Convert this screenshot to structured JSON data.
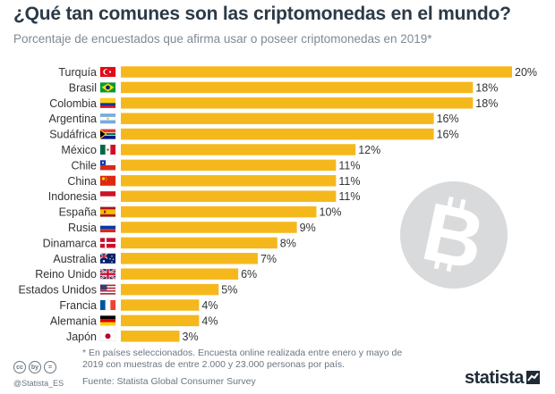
{
  "chart_data": {
    "type": "bar",
    "orientation": "horizontal",
    "title": "¿Qué tan comunes son las criptomonedas en el mundo?",
    "subtitle": "Porcentaje de encuestados que afirma usar o poseer criptomonedas en 2019*",
    "categories": [
      "Turquía",
      "Brasil",
      "Colombia",
      "Argentina",
      "Sudáfrica",
      "México",
      "Chile",
      "China",
      "Indonesia",
      "España",
      "Rusia",
      "Dinamarca",
      "Australia",
      "Reino Unido",
      "Estados Unidos",
      "Francia",
      "Alemania",
      "Japón"
    ],
    "values": [
      20,
      18,
      18,
      16,
      16,
      12,
      11,
      11,
      11,
      10,
      9,
      8,
      7,
      6,
      5,
      4,
      4,
      3
    ],
    "value_suffix": "%",
    "xlim": [
      0,
      20
    ],
    "bar_color": "#f5b81c"
  },
  "flags": [
    "turkey-flag-icon",
    "brazil-flag-icon",
    "colombia-flag-icon",
    "argentina-flag-icon",
    "south-africa-flag-icon",
    "mexico-flag-icon",
    "chile-flag-icon",
    "china-flag-icon",
    "indonesia-flag-icon",
    "spain-flag-icon",
    "russia-flag-icon",
    "denmark-flag-icon",
    "australia-flag-icon",
    "uk-flag-icon",
    "usa-flag-icon",
    "france-flag-icon",
    "germany-flag-icon",
    "japan-flag-icon"
  ],
  "decoration": {
    "icon": "bitcoin-icon",
    "color": "#d9dadc"
  },
  "footnote": "* En países seleccionados. Encuesta online realizada entre enero y mayo de 2019 con muestras de entre 2.000 y 23.000 personas por país.",
  "source": "Fuente: Statista Global Consumer Survey",
  "handle": "@Statista_ES",
  "license_icons": [
    "cc",
    "by",
    "="
  ],
  "brand": "statista"
}
